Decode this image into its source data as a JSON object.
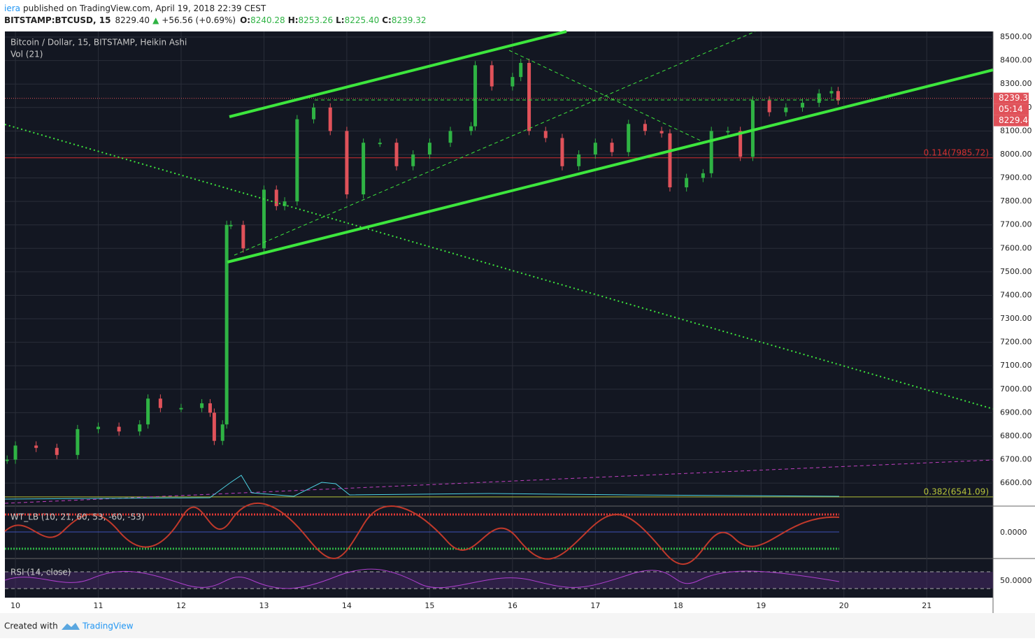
{
  "header": {
    "user": "iera",
    "published": "published on TradingView.com, April 19, 2018 22:39 CEST",
    "symbol": "BITSTAMP:BTCUSD, 15",
    "last": "8229.40",
    "change_arrow": "▲",
    "change": "+56.56 (+0.69%)",
    "o_label": "O:",
    "o": "8240.28",
    "h_label": "H:",
    "h": "8253.26",
    "l_label": "L:",
    "l": "8225.40",
    "c_label": "C:",
    "c": "8239.32"
  },
  "footer": {
    "created": "Created with",
    "brand": "TradingView"
  },
  "chart_data": {
    "type": "candlestick",
    "title": "Bitcoin / Dollar, 15, BITSTAMP, Heikin Ashi",
    "volume_label": "Vol (21)",
    "indicators": [
      {
        "name": "WT_LB (10, 21, 60, 53, -60, -53)",
        "axis_label": "0.0000"
      },
      {
        "name": "RSI (14, close)",
        "axis_label": "50.0000"
      }
    ],
    "up_color": "#2fb344",
    "down_color": "#e0525a",
    "grid": true,
    "x": [
      9.9,
      10.0,
      10.25,
      10.5,
      10.75,
      11.0,
      11.25,
      11.5,
      11.6,
      11.75,
      12.0,
      12.25,
      12.35,
      12.4,
      12.5,
      12.55,
      12.6,
      12.75,
      13.0,
      13.15,
      13.25,
      13.4,
      13.6,
      13.8,
      14.0,
      14.2,
      14.4,
      14.6,
      14.8,
      15.0,
      15.25,
      15.5,
      15.55,
      15.75,
      16.0,
      16.1,
      16.2,
      16.4,
      16.6,
      16.8,
      17.0,
      17.2,
      17.4,
      17.6,
      17.8,
      17.9,
      18.1,
      18.3,
      18.4,
      18.6,
      18.75,
      18.9,
      19.1,
      19.3,
      19.5,
      19.7,
      19.85,
      19.93
    ],
    "values": [
      6700,
      6760,
      6750,
      6720,
      6830,
      6840,
      6820,
      6850,
      6960,
      6920,
      6920,
      6940,
      6900,
      6780,
      6850,
      7700,
      7700,
      7600,
      7850,
      7780,
      7800,
      8150,
      8200,
      8100,
      7830,
      8050,
      8050,
      7950,
      8000,
      8050,
      8100,
      8120,
      8380,
      8290,
      8330,
      8390,
      8100,
      8070,
      7950,
      8000,
      8050,
      8010,
      8130,
      8100,
      8090,
      7860,
      7900,
      7920,
      8100,
      8100,
      7990,
      8230,
      8180,
      8200,
      8220,
      8260,
      8270,
      8230
    ],
    "xlim": [
      9.873,
      21.8
    ],
    "xticks": [
      10,
      11,
      12,
      13,
      14,
      15,
      16,
      17,
      18,
      19,
      20,
      21
    ],
    "ylim": [
      6514,
      8524
    ],
    "yticks": [
      {
        "value": 6600,
        "label": "6600.00"
      },
      {
        "value": 6700,
        "label": "6700.00"
      },
      {
        "value": 6800,
        "label": "6800.00"
      },
      {
        "value": 6900,
        "label": "6900.00"
      },
      {
        "value": 7000,
        "label": "7000.00"
      },
      {
        "value": 7100,
        "label": "7100.00"
      },
      {
        "value": 7200,
        "label": "7200.00"
      },
      {
        "value": 7300,
        "label": "7300.00"
      },
      {
        "value": 7400,
        "label": "7400.00"
      },
      {
        "value": 7500,
        "label": "7500.00"
      },
      {
        "value": 7600,
        "label": "7600.00"
      },
      {
        "value": 7700,
        "label": "7700.00"
      },
      {
        "value": 7800,
        "label": "7800.00"
      },
      {
        "value": 7900,
        "label": "7900.00"
      },
      {
        "value": 8000,
        "label": "8000.00"
      },
      {
        "value": 8100,
        "label": "8100.00"
      },
      {
        "value": 8200,
        "label": "8200.00"
      },
      {
        "value": 8300,
        "label": "8300.00"
      },
      {
        "value": 8400,
        "label": "8400.00"
      },
      {
        "value": 8500,
        "label": "8500.00"
      }
    ],
    "levels": [
      {
        "value": 7985.72,
        "label": "0.114(7985.72)",
        "color": "#d32f2f"
      },
      {
        "value": 6541.09,
        "label": "0.382(6541.09)",
        "color": "#b5c23a"
      }
    ],
    "price_labels": [
      {
        "value": 8239.32,
        "label": "8239.32"
      },
      {
        "label": "05:14"
      },
      {
        "label": "8229.40"
      }
    ]
  }
}
